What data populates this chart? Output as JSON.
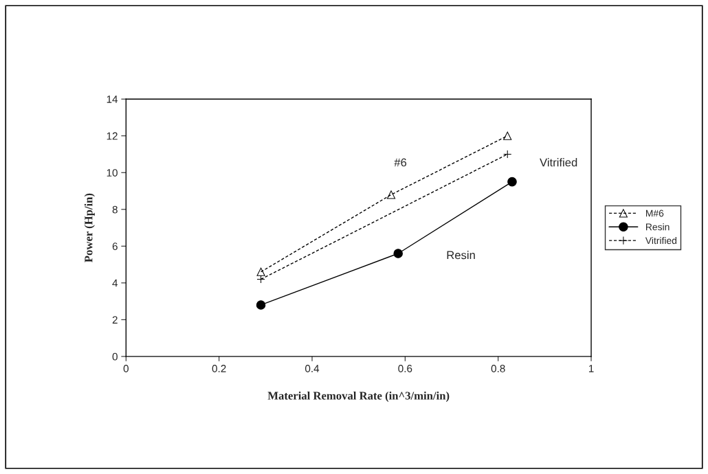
{
  "chart_data": {
    "type": "line",
    "xlabel": "Material Removal Rate (in^3/min/in)",
    "ylabel": "Power (Hp/in)",
    "xlim": [
      0,
      1
    ],
    "xticks": [
      0,
      0.2,
      0.4,
      0.6,
      0.8,
      1
    ],
    "ylim": [
      0,
      14
    ],
    "yticks": [
      0,
      2,
      4,
      6,
      8,
      10,
      12,
      14
    ],
    "grid": false,
    "legend": "right",
    "series": [
      {
        "name": "M#6",
        "color": "#000000",
        "x": [
          0.29,
          0.57,
          0.82
        ],
        "values": [
          4.6,
          8.8,
          12.0
        ],
        "marker": "triangle",
        "line_style": "dashed"
      },
      {
        "name": "Resin",
        "color": "#000000",
        "x": [
          0.29,
          0.585,
          0.83
        ],
        "values": [
          2.8,
          5.6,
          9.5
        ],
        "marker": "circle",
        "line_style": "solid"
      },
      {
        "name": "Vitrified",
        "color": "#000000",
        "x": [
          0.29,
          0.82
        ],
        "values": [
          4.2,
          11.0
        ],
        "marker": "cross",
        "line_style": "dashed"
      }
    ],
    "annotations": [
      "#6",
      "Vitrified",
      "Resin"
    ]
  }
}
